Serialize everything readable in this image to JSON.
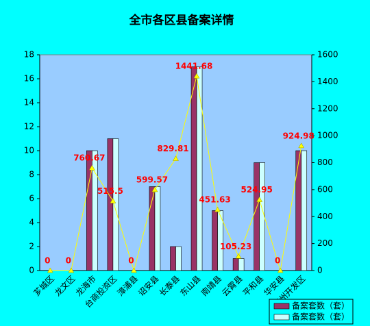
{
  "chart_data": {
    "type": "combo",
    "title": "全市各区县备案详情",
    "categories": [
      "芗城区",
      "龙文区",
      "龙海市",
      "台商投资区",
      "漳浦县",
      "诏安县",
      "长泰县",
      "东山县",
      "南靖县",
      "云霄县",
      "平和县",
      "华安县",
      "漳州开发区"
    ],
    "series": [
      {
        "name": "备案套数（套）",
        "type": "bar",
        "color": "#993366",
        "values": [
          0,
          0,
          10,
          11,
          0,
          7,
          2,
          17,
          5,
          1,
          9,
          0,
          10
        ]
      },
      {
        "name": "备案套数（套）",
        "type": "bar",
        "color": "#ccffff",
        "values": [
          0,
          0,
          10,
          11,
          0,
          7,
          2,
          17,
          5,
          1,
          9,
          0,
          10
        ]
      },
      {
        "type": "line",
        "axis": "y2",
        "color": "#ffff00",
        "values": [
          0,
          0,
          760.67,
          515.5,
          0,
          599.57,
          829.81,
          1441.68,
          451.63,
          105.23,
          524.95,
          0,
          924.98
        ]
      }
    ],
    "ylim": [
      0,
      18
    ],
    "yticks": [
      0,
      2,
      4,
      6,
      8,
      10,
      12,
      14,
      16,
      18
    ],
    "y2lim": [
      0,
      1600
    ],
    "y2ticks": [
      0,
      200,
      400,
      600,
      800,
      1000,
      1200,
      1400,
      1600
    ],
    "plot_background": "#99ccff",
    "label_color": "#ff0000"
  }
}
